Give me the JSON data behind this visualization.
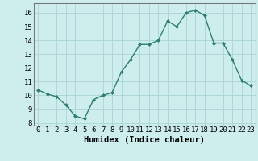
{
  "x": [
    0,
    1,
    2,
    3,
    4,
    5,
    6,
    7,
    8,
    9,
    10,
    11,
    12,
    13,
    14,
    15,
    16,
    17,
    18,
    19,
    20,
    21,
    22,
    23
  ],
  "y": [
    10.4,
    10.1,
    9.9,
    9.3,
    8.5,
    8.3,
    9.7,
    10.0,
    10.2,
    11.7,
    12.6,
    13.7,
    13.7,
    14.0,
    15.4,
    15.0,
    16.0,
    16.2,
    15.8,
    13.8,
    13.8,
    12.6,
    11.1,
    10.7
  ],
  "line_color": "#2e7d6e",
  "marker": "D",
  "marker_size": 2.0,
  "linewidth": 1.0,
  "xlabel": "Humidex (Indice chaleur)",
  "xlim": [
    -0.5,
    23.5
  ],
  "ylim": [
    7.8,
    16.7
  ],
  "yticks": [
    8,
    9,
    10,
    11,
    12,
    13,
    14,
    15,
    16
  ],
  "xticks": [
    0,
    1,
    2,
    3,
    4,
    5,
    6,
    7,
    8,
    9,
    10,
    11,
    12,
    13,
    14,
    15,
    16,
    17,
    18,
    19,
    20,
    21,
    22,
    23
  ],
  "background_color": "#ceeeed",
  "grid_color": "#aed8d8",
  "tick_fontsize": 6.5,
  "label_fontsize": 7.5
}
